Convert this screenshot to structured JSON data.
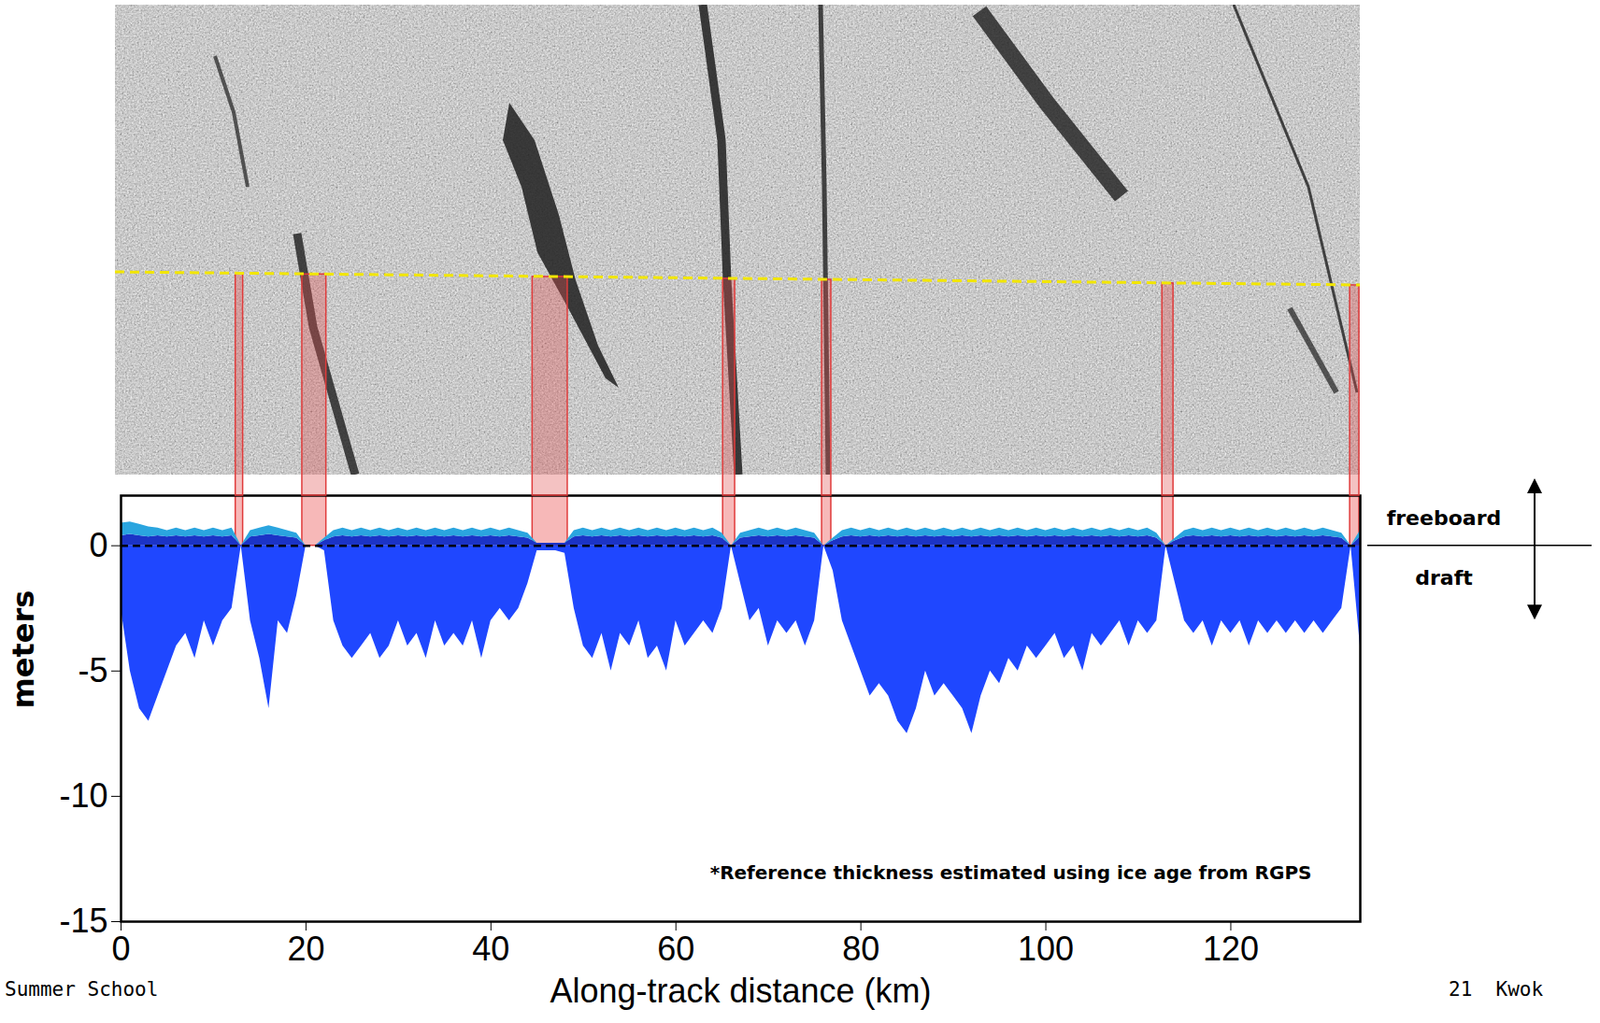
{
  "chart_data": {
    "type": "area",
    "stacked": true,
    "x_label": "Along-track distance (km)",
    "y_label": "meters",
    "annotation": "*Reference thickness estimated using ice age from RGPS",
    "freeboard_label": "freeboard",
    "draft_label": "draft",
    "footer_left": "Summer School",
    "footer_right": "21  Kwok",
    "xlim": [
      0,
      134
    ],
    "xticks": [
      0,
      20,
      40,
      60,
      80,
      100,
      120
    ],
    "ylim": [
      -15,
      2
    ],
    "yticks": [
      -15,
      -10,
      -5,
      0
    ],
    "baseline": 0,
    "leads": [
      [
        12.4,
        13.2
      ],
      [
        19.6,
        22.2
      ],
      [
        44.5,
        48.3
      ],
      [
        65.1,
        66.4
      ],
      [
        75.8,
        76.8
      ],
      [
        112.6,
        113.8
      ],
      [
        132.9,
        133.9
      ]
    ],
    "x": [
      0,
      1,
      2,
      3,
      4,
      5,
      6,
      7,
      8,
      9,
      10,
      11,
      12,
      13,
      14,
      15,
      16,
      17,
      18,
      19,
      20,
      21,
      22,
      23,
      24,
      25,
      26,
      27,
      28,
      29,
      30,
      31,
      32,
      33,
      34,
      35,
      36,
      37,
      38,
      39,
      40,
      41,
      42,
      43,
      44,
      45,
      46,
      47,
      48,
      49,
      50,
      51,
      52,
      53,
      54,
      55,
      56,
      57,
      58,
      59,
      60,
      61,
      62,
      63,
      64,
      65,
      66,
      67,
      68,
      69,
      70,
      71,
      72,
      73,
      74,
      75,
      76,
      77,
      78,
      79,
      80,
      81,
      82,
      83,
      84,
      85,
      86,
      87,
      88,
      89,
      90,
      91,
      92,
      93,
      94,
      95,
      96,
      97,
      98,
      99,
      100,
      101,
      102,
      103,
      104,
      105,
      106,
      107,
      108,
      109,
      110,
      111,
      112,
      113,
      114,
      115,
      116,
      117,
      118,
      119,
      120,
      121,
      122,
      123,
      124,
      125,
      126,
      127,
      128,
      129,
      130,
      131,
      132,
      133,
      134
    ],
    "series": [
      {
        "color": "#1b33c6",
        "values": [
          0.4,
          0.45,
          0.4,
          0.35,
          0.4,
          0.35,
          0.4,
          0.35,
          0.4,
          0.35,
          0.4,
          0.35,
          0.4,
          0,
          0.35,
          0.4,
          0.45,
          0.4,
          0.35,
          0.3,
          0,
          0,
          0.2,
          0.35,
          0.4,
          0.35,
          0.4,
          0.35,
          0.4,
          0.35,
          0.4,
          0.35,
          0.4,
          0.35,
          0.4,
          0.35,
          0.4,
          0.35,
          0.4,
          0.35,
          0.4,
          0.35,
          0.4,
          0.35,
          0.3,
          0.1,
          0.1,
          0.1,
          0.1,
          0.35,
          0.4,
          0.35,
          0.4,
          0.35,
          0.4,
          0.35,
          0.4,
          0.35,
          0.4,
          0.35,
          0.4,
          0.35,
          0.4,
          0.35,
          0.4,
          0.3,
          0,
          0.3,
          0.35,
          0.4,
          0.35,
          0.4,
          0.35,
          0.4,
          0.35,
          0.3,
          0,
          0.2,
          0.35,
          0.4,
          0.35,
          0.4,
          0.35,
          0.4,
          0.35,
          0.4,
          0.35,
          0.4,
          0.35,
          0.4,
          0.35,
          0.4,
          0.35,
          0.4,
          0.35,
          0.4,
          0.35,
          0.4,
          0.35,
          0.4,
          0.35,
          0.4,
          0.35,
          0.4,
          0.35,
          0.4,
          0.35,
          0.4,
          0.35,
          0.4,
          0.35,
          0.4,
          0.3,
          0,
          0.2,
          0.35,
          0.4,
          0.35,
          0.4,
          0.35,
          0.4,
          0.35,
          0.4,
          0.35,
          0.4,
          0.35,
          0.4,
          0.35,
          0.4,
          0.35,
          0.4,
          0.35,
          0.3,
          0,
          0.35
        ]
      },
      {
        "color": "#2aa5df",
        "values": [
          0.5,
          0.5,
          0.45,
          0.4,
          0.3,
          0.25,
          0.3,
          0.25,
          0.3,
          0.25,
          0.3,
          0.25,
          0.3,
          0,
          0.25,
          0.3,
          0.35,
          0.3,
          0.25,
          0.2,
          0,
          0,
          0.1,
          0.25,
          0.3,
          0.25,
          0.3,
          0.25,
          0.3,
          0.25,
          0.3,
          0.25,
          0.3,
          0.25,
          0.3,
          0.25,
          0.3,
          0.25,
          0.3,
          0.25,
          0.3,
          0.25,
          0.3,
          0.25,
          0.2,
          0,
          0,
          0,
          0,
          0.25,
          0.3,
          0.25,
          0.3,
          0.25,
          0.3,
          0.25,
          0.3,
          0.25,
          0.3,
          0.25,
          0.3,
          0.25,
          0.3,
          0.25,
          0.3,
          0.2,
          0,
          0.2,
          0.25,
          0.3,
          0.25,
          0.3,
          0.25,
          0.3,
          0.25,
          0.2,
          0,
          0.1,
          0.25,
          0.3,
          0.25,
          0.3,
          0.25,
          0.3,
          0.25,
          0.3,
          0.25,
          0.3,
          0.25,
          0.3,
          0.25,
          0.3,
          0.25,
          0.3,
          0.25,
          0.3,
          0.25,
          0.3,
          0.25,
          0.3,
          0.25,
          0.3,
          0.25,
          0.3,
          0.25,
          0.3,
          0.25,
          0.3,
          0.25,
          0.3,
          0.25,
          0.3,
          0.2,
          0,
          0.1,
          0.25,
          0.3,
          0.25,
          0.3,
          0.25,
          0.3,
          0.25,
          0.3,
          0.25,
          0.3,
          0.25,
          0.3,
          0.25,
          0.3,
          0.25,
          0.3,
          0.25,
          0.2,
          0,
          0.25
        ]
      },
      {
        "color": "#1f47ff",
        "values": [
          -2.5,
          -5,
          -6.5,
          -7,
          -6,
          -5,
          -4,
          -3.5,
          -4.5,
          -3,
          -4,
          -3,
          -2.5,
          0,
          -3,
          -4.5,
          -6.5,
          -3,
          -3.5,
          -2,
          0,
          0,
          -0.2,
          -3,
          -4,
          -4.5,
          -4,
          -3.5,
          -4.5,
          -4,
          -3,
          -4,
          -3.5,
          -4.5,
          -3,
          -4,
          -3.5,
          -4,
          -3,
          -4.5,
          -3,
          -2.5,
          -3,
          -2.5,
          -1.5,
          -0.2,
          -0.2,
          -0.2,
          -0.3,
          -2.5,
          -4,
          -4.5,
          -3.5,
          -5,
          -3.5,
          -4,
          -3,
          -4.5,
          -4,
          -5,
          -3,
          -4,
          -3.5,
          -3,
          -3.5,
          -2.5,
          0,
          -1.5,
          -3,
          -2.5,
          -4,
          -3,
          -3.5,
          -3,
          -4,
          -3,
          0,
          -1,
          -3,
          -4,
          -5,
          -6,
          -5.5,
          -6,
          -7,
          -7.5,
          -6.5,
          -5,
          -6,
          -5.5,
          -6,
          -6.5,
          -7.5,
          -6,
          -5,
          -5.5,
          -4.5,
          -5,
          -4,
          -4.5,
          -4,
          -3.5,
          -4.5,
          -4,
          -5,
          -3.5,
          -4,
          -3.5,
          -3,
          -4,
          -3,
          -3.5,
          -3,
          0,
          -1.5,
          -3,
          -3.5,
          -3,
          -4,
          -3,
          -3.5,
          -3,
          -4,
          -3,
          -3.5,
          -3,
          -3.5,
          -3,
          -3.5,
          -3,
          -3.5,
          -3,
          -2.5,
          0,
          -4
        ]
      }
    ]
  }
}
